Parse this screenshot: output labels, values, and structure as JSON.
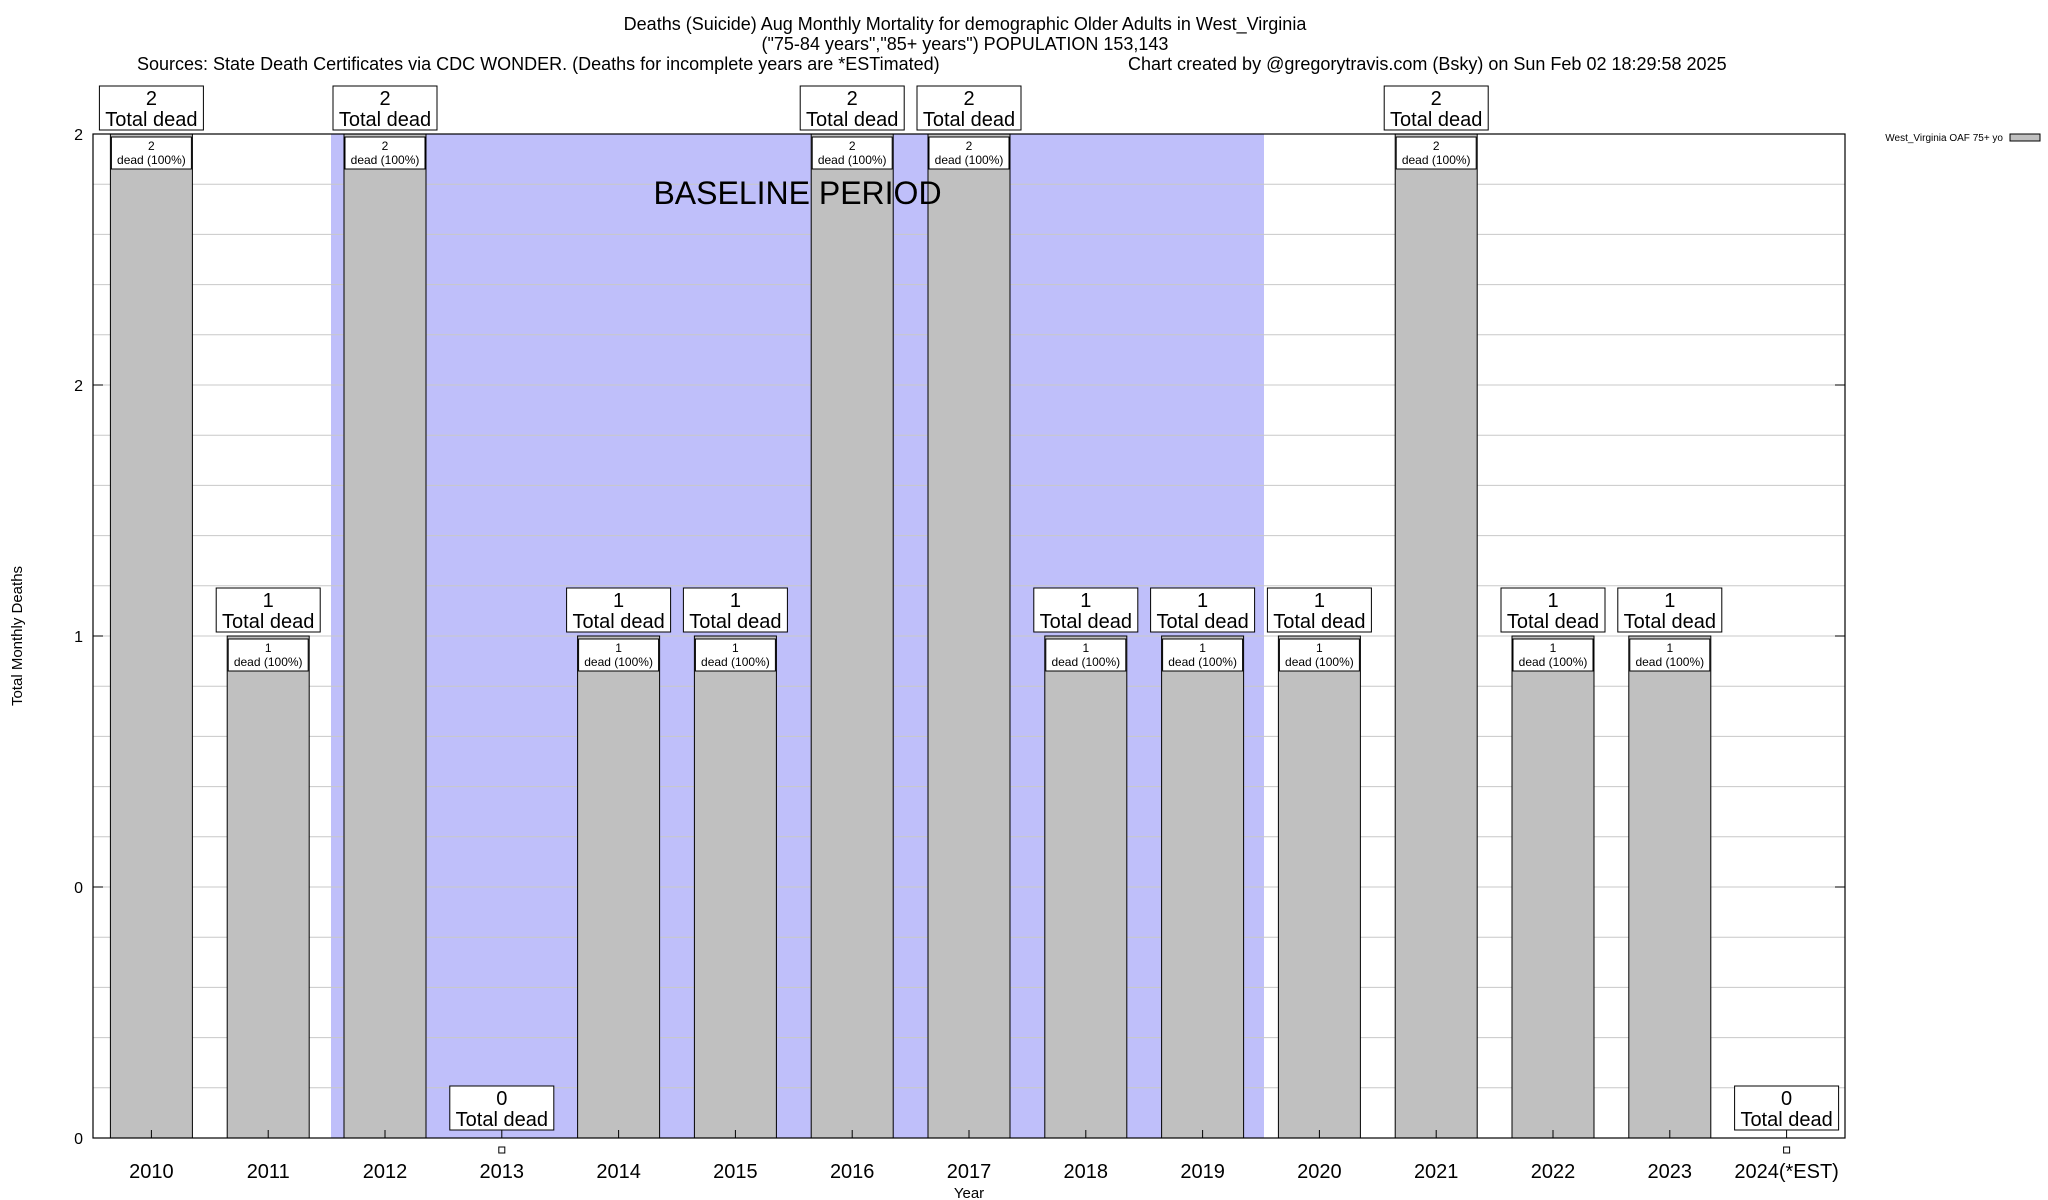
{
  "header": {
    "title_line1": "Deaths (Suicide) Aug Monthly Mortality for demographic Older Adults in West_Virginia",
    "title_line2": "(\"75-84 years\",\"85+ years\") POPULATION 153,143",
    "sources": "Sources: State Death Certificates via CDC WONDER. (Deaths for incomplete years are *ESTimated)",
    "credit": "Chart created by @gregorytravis.com (Bsky) on Sun Feb 02 18:29:58 2025"
  },
  "chart_data": {
    "type": "bar",
    "title": "Deaths (Suicide) Aug Monthly Mortality for demographic Older Adults in West_Virginia",
    "xlabel": "Year",
    "ylabel": "Total Monthly Deaths",
    "categories": [
      "2010",
      "2011",
      "2012",
      "2013",
      "2014",
      "2015",
      "2016",
      "2017",
      "2018",
      "2019",
      "2020",
      "2021",
      "2022",
      "2023",
      "2024(*EST)"
    ],
    "series": [
      {
        "name": "West_Virginia OAF 75+ yo",
        "values": [
          2,
          1,
          2,
          0,
          1,
          1,
          2,
          2,
          1,
          1,
          1,
          2,
          1,
          1,
          0
        ]
      }
    ],
    "ylim": [
      0,
      2
    ],
    "yticks": [
      {
        "value": 0,
        "label": "0"
      },
      {
        "value": 0.5,
        "label": "0"
      },
      {
        "value": 1,
        "label": "1"
      },
      {
        "value": 1.5,
        "label": "2"
      },
      {
        "value": 2,
        "label": "2"
      }
    ],
    "grid": true,
    "legend_position": "top-right",
    "bar_color": "#c0c0c0",
    "shade_color": "#bfbffa",
    "baseline_period": {
      "label": "BASELINE PERIOD",
      "start": "2012",
      "end": "2019"
    },
    "total_labels": [
      {
        "count": "2",
        "text": "Total dead"
      },
      {
        "count": "1",
        "text": "Total dead"
      },
      {
        "count": "2",
        "text": "Total dead"
      },
      {
        "count": "0",
        "text": "Total dead"
      },
      {
        "count": "1",
        "text": "Total dead"
      },
      {
        "count": "1",
        "text": "Total dead"
      },
      {
        "count": "2",
        "text": "Total dead"
      },
      {
        "count": "2",
        "text": "Total dead"
      },
      {
        "count": "1",
        "text": "Total dead"
      },
      {
        "count": "1",
        "text": "Total dead"
      },
      {
        "count": "1",
        "text": "Total dead"
      },
      {
        "count": "2",
        "text": "Total dead"
      },
      {
        "count": "1",
        "text": "Total dead"
      },
      {
        "count": "1",
        "text": "Total dead"
      },
      {
        "count": "0",
        "text": "Total dead"
      }
    ],
    "inner_labels": [
      {
        "count": "2",
        "text": "dead (100%)"
      },
      {
        "count": "1",
        "text": "dead (100%)"
      },
      {
        "count": "2",
        "text": "dead (100%)"
      },
      null,
      {
        "count": "1",
        "text": "dead (100%)"
      },
      {
        "count": "1",
        "text": "dead (100%)"
      },
      {
        "count": "2",
        "text": "dead (100%)"
      },
      {
        "count": "2",
        "text": "dead (100%)"
      },
      {
        "count": "1",
        "text": "dead (100%)"
      },
      {
        "count": "1",
        "text": "dead (100%)"
      },
      {
        "count": "1",
        "text": "dead (100%)"
      },
      {
        "count": "2",
        "text": "dead (100%)"
      },
      {
        "count": "1",
        "text": "dead (100%)"
      },
      {
        "count": "1",
        "text": "dead (100%)"
      },
      null
    ]
  }
}
